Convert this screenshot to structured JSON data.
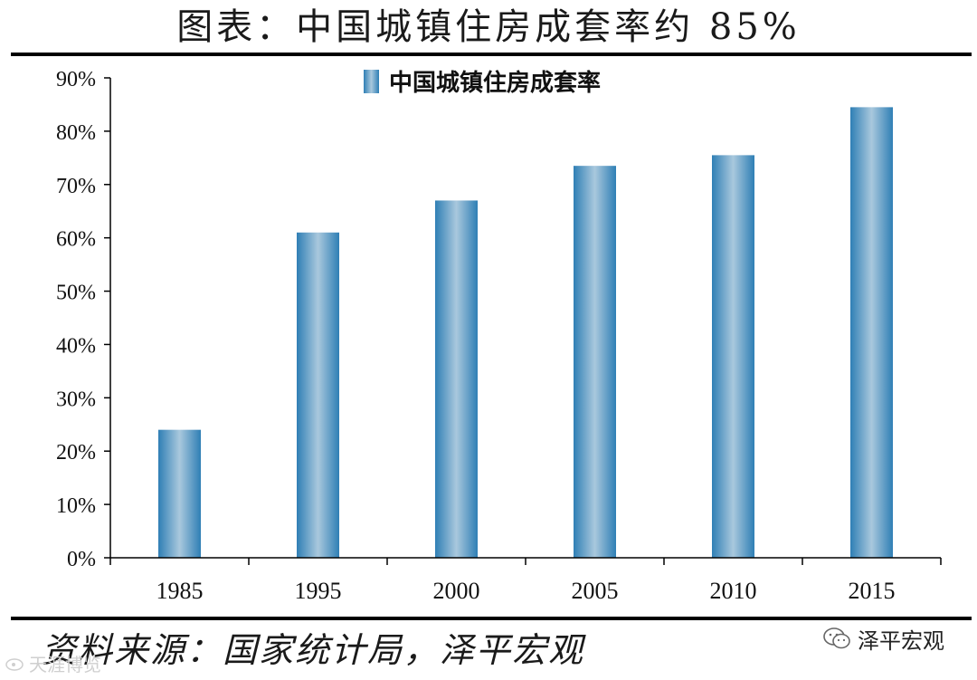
{
  "page": {
    "title": "图表：中国城镇住房成套率约 85%",
    "source": "资料来源：国家统计局，泽平宏观",
    "brand": "泽平宏观",
    "watermark": "天涯博览"
  },
  "colors": {
    "bar_dark": "#2f7fb5",
    "bar_light": "#a9c8dd",
    "axis": "#000000"
  },
  "chart_data": {
    "type": "bar",
    "title": "",
    "xlabel": "",
    "ylabel": "",
    "categories": [
      "1985",
      "1995",
      "2000",
      "2005",
      "2010",
      "2015"
    ],
    "series": [
      {
        "name": "中国城镇住房成套率",
        "values": [
          24,
          61,
          67,
          73.5,
          75.5,
          84.5
        ]
      }
    ],
    "y_ticks": [
      "0%",
      "10%",
      "20%",
      "30%",
      "40%",
      "50%",
      "60%",
      "70%",
      "80%",
      "90%"
    ],
    "ylim": [
      0,
      90
    ],
    "grid": false,
    "legend_position": "top-center"
  }
}
